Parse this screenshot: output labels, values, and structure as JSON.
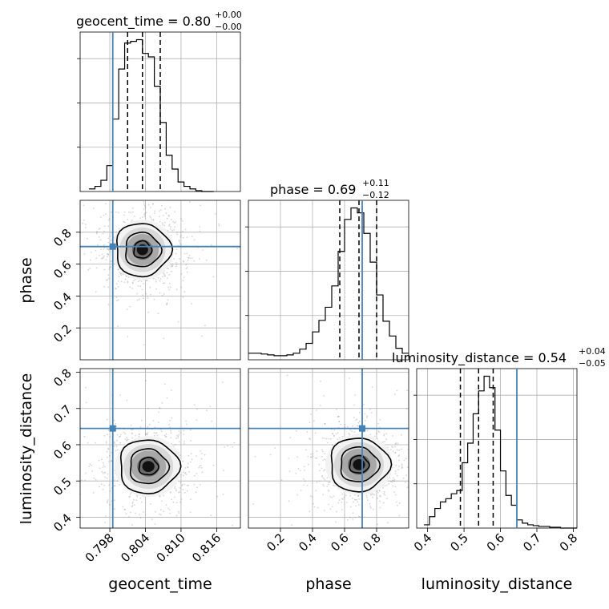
{
  "colors": {
    "truth": "#4682b4",
    "hist": "#000000",
    "grid": "#b0b0b0"
  },
  "chart_data": {
    "type": "corner",
    "parameters": [
      {
        "name": "geocent_time",
        "median": "0.80",
        "plus": "+0.00",
        "minus": "−0.00",
        "range": [
          0.793,
          0.82
        ],
        "ticks": [
          "0.798",
          "0.804",
          "0.810",
          "0.816"
        ],
        "tick_values": [
          0.798,
          0.804,
          0.81,
          0.816
        ],
        "truth": 0.7985,
        "quantiles": [
          0.801,
          0.8035,
          0.8065
        ]
      },
      {
        "name": "phase",
        "median": "0.69",
        "plus": "+0.11",
        "minus": "−0.12",
        "range": [
          0.0,
          1.0
        ],
        "ticks": [
          "0.2",
          "0.4",
          "0.6",
          "0.8"
        ],
        "tick_values": [
          0.2,
          0.4,
          0.6,
          0.8
        ],
        "truth": 0.71,
        "quantiles": [
          0.57,
          0.69,
          0.8
        ]
      },
      {
        "name": "luminosity_distance",
        "median": "0.54",
        "plus": "+0.04",
        "minus": "−0.05",
        "range": [
          0.37,
          0.81
        ],
        "ticks": [
          "0.4",
          "0.5",
          "0.6",
          "0.7",
          "0.8"
        ],
        "tick_values": [
          0.4,
          0.5,
          0.6,
          0.7,
          0.8
        ],
        "truth": 0.645,
        "quantiles": [
          0.49,
          0.54,
          0.58
        ]
      }
    ],
    "histograms": {
      "geocent_time": {
        "bin_edges": [
          0.7945,
          0.7955,
          0.7965,
          0.7975,
          0.7985,
          0.7995,
          0.8005,
          0.8015,
          0.8025,
          0.8035,
          0.8045,
          0.8055,
          0.8065,
          0.8075,
          0.8085,
          0.8095,
          0.8105,
          0.8115,
          0.8125,
          0.8135,
          0.8145,
          0.8155
        ],
        "counts": [
          3,
          6,
          13,
          30,
          84,
          142,
          172,
          174,
          176,
          160,
          156,
          122,
          80,
          42,
          26,
          11,
          6,
          3,
          1,
          0,
          0
        ]
      },
      "phase": {
        "bin_edges": [
          0.0,
          0.04,
          0.08,
          0.12,
          0.16,
          0.2,
          0.24,
          0.28,
          0.32,
          0.36,
          0.4,
          0.44,
          0.48,
          0.52,
          0.56,
          0.6,
          0.64,
          0.68,
          0.72,
          0.76,
          0.8,
          0.84,
          0.88,
          0.92,
          0.96,
          1.0
        ],
        "counts": [
          8,
          8,
          7,
          6,
          5,
          5,
          6,
          8,
          13,
          20,
          34,
          48,
          64,
          90,
          132,
          171,
          185,
          179,
          154,
          119,
          79,
          47,
          29,
          14,
          8
        ]
      },
      "luminosity_distance": {
        "bin_edges": [
          0.39,
          0.405,
          0.42,
          0.435,
          0.45,
          0.465,
          0.48,
          0.495,
          0.51,
          0.525,
          0.54,
          0.555,
          0.57,
          0.585,
          0.6,
          0.615,
          0.63,
          0.645,
          0.66,
          0.675,
          0.69,
          0.705,
          0.72,
          0.735,
          0.75,
          0.765,
          0.78,
          0.795,
          0.81
        ],
        "counts": [
          4,
          14,
          24,
          32,
          36,
          42,
          46,
          80,
          104,
          140,
          168,
          186,
          172,
          120,
          70,
          40,
          28,
          10,
          6,
          4,
          3,
          2,
          2,
          1,
          1,
          0,
          0,
          0
        ]
      }
    },
    "joint": [
      {
        "x": "geocent_time",
        "y": "phase",
        "peak": [
          0.8035,
          0.69
        ],
        "spread": [
          0.0025,
          0.09
        ],
        "truth": [
          0.7985,
          0.71
        ]
      },
      {
        "x": "geocent_time",
        "y": "luminosity_distance",
        "peak": [
          0.8045,
          0.54
        ],
        "spread": [
          0.0027,
          0.04
        ],
        "truth": [
          0.7985,
          0.645
        ]
      },
      {
        "x": "phase",
        "y": "luminosity_distance",
        "peak": [
          0.69,
          0.545
        ],
        "spread": [
          0.1,
          0.04
        ],
        "truth": [
          0.71,
          0.645
        ]
      }
    ]
  }
}
